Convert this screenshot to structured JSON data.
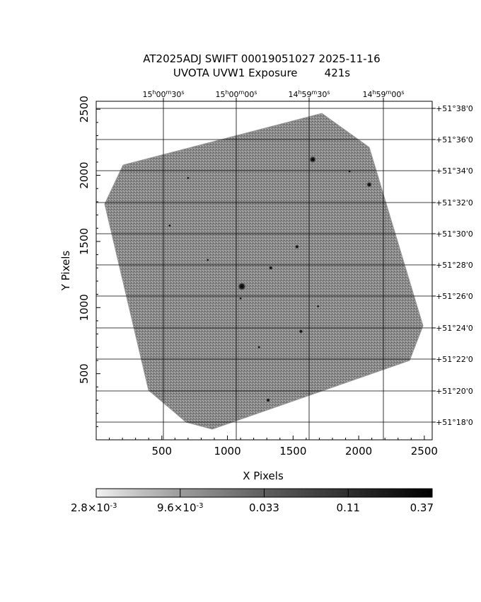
{
  "figure": {
    "title_line1": "AT2025ADJ SWIFT 00019051027 2025-11-16",
    "title_line2": "UVOTA UVW1 Exposure        421s"
  },
  "chart_data": {
    "type": "heatmap",
    "xlabel": "X Pixels",
    "ylabel": "Y Pixels",
    "xlim": [
      0,
      2560
    ],
    "ylim": [
      0,
      2560
    ],
    "x_ticks": [
      500,
      1000,
      1500,
      2000,
      2500
    ],
    "y_ticks": [
      500,
      1000,
      1500,
      2000,
      2500
    ],
    "ra_ticks": [
      {
        "h": "15",
        "m": "00",
        "s": "30"
      },
      {
        "h": "15",
        "m": "00",
        "s": "00"
      },
      {
        "h": "14",
        "m": "59",
        "s": "30"
      },
      {
        "h": "14",
        "m": "59",
        "s": "00"
      }
    ],
    "dec_ticks": [
      "+51°38'0",
      "+51°36'0",
      "+51°34'0",
      "+51°32'0",
      "+51°30'0",
      "+51°28'0",
      "+51°26'0",
      "+51°24'0",
      "+51°22'0",
      "+51°20'0",
      "+51°18'0"
    ],
    "grid": true,
    "colorbar": {
      "scale": "log",
      "colormap": "gray-inverted",
      "ticks": [
        {
          "mant": "2.8",
          "exp": "-3"
        },
        {
          "mant": "9.6",
          "exp": "-3"
        },
        {
          "label": "0.033"
        },
        {
          "label": "0.11"
        },
        {
          "label": "0.37"
        }
      ]
    },
    "sources": [
      {
        "x": 1650,
        "y": 2120,
        "r": 5
      },
      {
        "x": 2080,
        "y": 1930,
        "r": 4
      },
      {
        "x": 1110,
        "y": 1160,
        "r": 6
      },
      {
        "x": 1560,
        "y": 820,
        "r": 3
      },
      {
        "x": 1530,
        "y": 1460,
        "r": 3
      },
      {
        "x": 1330,
        "y": 1300,
        "r": 3
      },
      {
        "x": 700,
        "y": 1980,
        "r": 2
      },
      {
        "x": 1930,
        "y": 2030,
        "r": 2
      },
      {
        "x": 1240,
        "y": 700,
        "r": 2
      },
      {
        "x": 1310,
        "y": 300,
        "r": 3
      },
      {
        "x": 560,
        "y": 1620,
        "r": 2
      },
      {
        "x": 1100,
        "y": 1070,
        "r": 2
      },
      {
        "x": 1690,
        "y": 1010,
        "r": 2
      },
      {
        "x": 850,
        "y": 1360,
        "r": 2
      }
    ]
  }
}
